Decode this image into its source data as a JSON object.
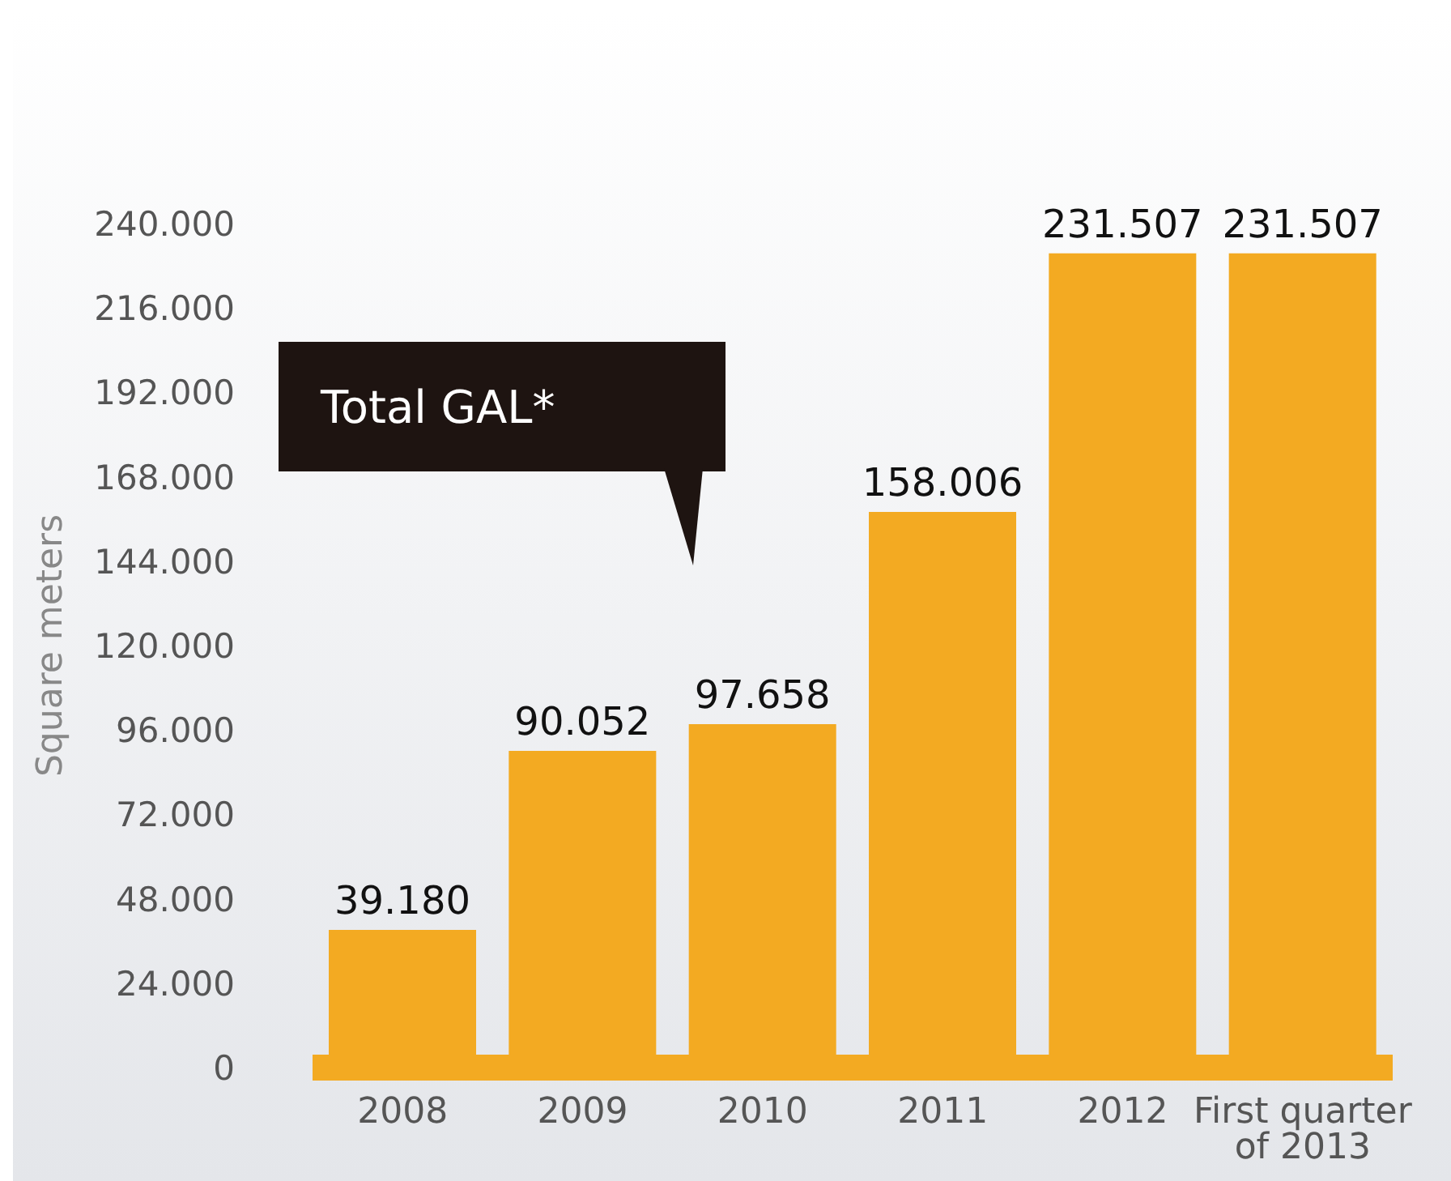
{
  "chart_data": {
    "type": "bar",
    "ylabel": "Square meters",
    "categories": [
      "2008",
      "2009",
      "2010",
      "2011",
      "2012",
      "First quarter of 2013"
    ],
    "values": [
      39180,
      90052,
      97658,
      158006,
      231507,
      231507
    ],
    "value_labels": [
      "39.180",
      "90.052",
      "97.658",
      "158.006",
      "231.507",
      "231.507"
    ],
    "color": "#f3aa22",
    "ylim": [
      0,
      240000
    ],
    "yticks": [
      {
        "value": 0,
        "label": "0"
      },
      {
        "value": 24000,
        "label": "24.000"
      },
      {
        "value": 48000,
        "label": "48.000"
      },
      {
        "value": 72000,
        "label": "72.000"
      },
      {
        "value": 96000,
        "label": "96.000"
      },
      {
        "value": 120000,
        "label": "120.000"
      },
      {
        "value": 144000,
        "label": "144.000"
      },
      {
        "value": 168000,
        "label": "168.000"
      },
      {
        "value": 192000,
        "label": "192.000"
      },
      {
        "value": 216000,
        "label": "216.000"
      },
      {
        "value": 240000,
        "label": "240.000"
      }
    ],
    "annotations": [
      "Total GAL*"
    ]
  }
}
